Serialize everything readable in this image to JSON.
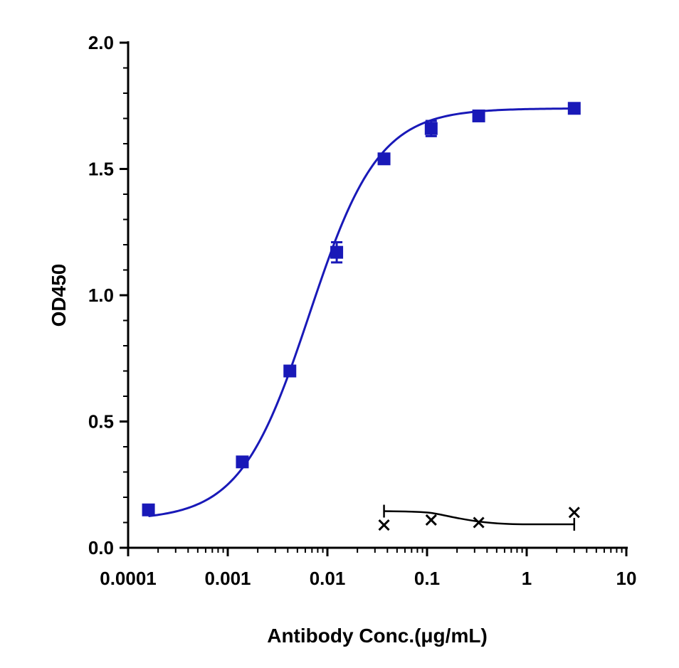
{
  "chart_data": {
    "type": "scatter",
    "xlabel": "Antibody Conc.(μg/mL)",
    "ylabel": "OD450",
    "xscale": "log",
    "xlim": [
      0.0001,
      10
    ],
    "ylim": [
      0,
      2.0
    ],
    "x_tick_labels": [
      "0.0001",
      "0.001",
      "0.01",
      "0.1",
      "1",
      "10"
    ],
    "x_tick_values": [
      0.0001,
      0.001,
      0.01,
      0.1,
      1,
      10
    ],
    "y_tick_labels": [
      "0.0",
      "0.5",
      "1.0",
      "1.5",
      "2.0"
    ],
    "y_tick_values": [
      0,
      0.5,
      1.0,
      1.5,
      2.0
    ],
    "grid": false,
    "legend": "none",
    "series": [
      {
        "marker": "square",
        "color": "#1919B8",
        "points": [
          {
            "x": 0.00016,
            "y": 0.15,
            "err": 0.01
          },
          {
            "x": 0.0014,
            "y": 0.34,
            "err": 0.01
          },
          {
            "x": 0.0042,
            "y": 0.7,
            "err": 0.01
          },
          {
            "x": 0.0124,
            "y": 1.17,
            "err": 0.04
          },
          {
            "x": 0.037,
            "y": 1.54,
            "err": 0.01
          },
          {
            "x": 0.11,
            "y": 1.66,
            "err": 0.03
          },
          {
            "x": 0.33,
            "y": 1.71,
            "err": 0.01
          },
          {
            "x": 3.0,
            "y": 1.74,
            "err": 0.01
          }
        ],
        "fit": {
          "model": "4PL",
          "bottom": 0.11,
          "top": 1.74,
          "ec50": 0.0066,
          "hill": 1.25
        }
      },
      {
        "marker": "x",
        "color": "#000000",
        "points": [
          {
            "x": 0.037,
            "y": 0.09
          },
          {
            "x": 0.11,
            "y": 0.11
          },
          {
            "x": 0.33,
            "y": 0.1
          },
          {
            "x": 3.0,
            "y": 0.14
          }
        ],
        "fit_curve": [
          [
            0.037,
            0.145
          ],
          [
            0.07,
            0.143
          ],
          [
            0.11,
            0.138
          ],
          [
            0.2,
            0.118
          ],
          [
            0.33,
            0.104
          ],
          [
            0.6,
            0.095
          ],
          [
            1.0,
            0.093
          ],
          [
            3.0,
            0.093
          ]
        ]
      }
    ]
  }
}
